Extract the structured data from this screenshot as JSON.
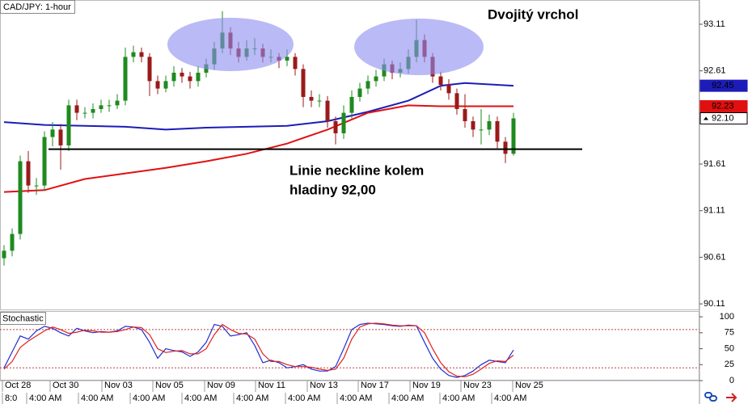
{
  "chart_data": [
    {
      "type": "candlestick",
      "title": "CAD/JPY: 1-hour",
      "open": [
        90.6,
        90.68,
        90.86,
        91.64,
        91.38,
        91.38,
        91.9,
        91.98,
        91.81,
        92.24,
        92.16,
        92.16,
        92.2,
        92.24,
        92.24,
        92.29,
        92.76,
        92.81,
        92.76,
        92.5,
        92.42,
        92.5,
        92.59,
        92.55,
        92.5,
        92.59,
        92.68,
        92.85,
        93.02,
        92.85,
        92.76,
        92.85,
        92.85,
        92.76,
        92.76,
        92.72,
        92.76,
        92.63,
        92.33,
        92.29,
        92.29,
        92.07,
        91.94,
        92.16,
        92.33,
        92.42,
        92.5,
        92.55,
        92.68,
        92.59,
        92.63,
        92.76,
        92.94,
        92.76,
        92.55,
        92.46,
        92.37,
        92.2,
        92.07,
        91.98,
        91.98,
        92.07,
        91.85,
        91.72
      ],
      "high": [
        90.74,
        90.92,
        91.7,
        91.75,
        91.46,
        91.96,
        92.06,
        92.04,
        92.3,
        92.3,
        92.22,
        92.26,
        92.3,
        92.3,
        92.36,
        92.86,
        92.88,
        92.86,
        92.8,
        92.56,
        92.56,
        92.66,
        92.64,
        92.6,
        92.66,
        92.74,
        92.92,
        93.25,
        93.08,
        92.92,
        92.94,
        92.96,
        92.9,
        92.84,
        92.8,
        92.84,
        92.8,
        92.68,
        92.4,
        92.36,
        92.34,
        92.12,
        92.24,
        92.4,
        92.48,
        92.56,
        92.62,
        92.74,
        92.72,
        92.7,
        92.84,
        93.16,
        93.0,
        92.8,
        92.6,
        92.52,
        92.42,
        92.36,
        92.12,
        92.2,
        92.14,
        92.12,
        91.9,
        92.16
      ],
      "low": [
        90.52,
        90.62,
        90.8,
        91.3,
        91.28,
        91.32,
        91.8,
        91.55,
        91.75,
        92.08,
        92.1,
        92.1,
        92.16,
        92.17,
        92.2,
        92.24,
        92.7,
        92.7,
        92.34,
        92.36,
        92.38,
        92.44,
        92.48,
        92.42,
        92.44,
        92.54,
        92.62,
        92.8,
        92.78,
        92.7,
        92.72,
        92.78,
        92.7,
        92.7,
        92.64,
        92.66,
        92.56,
        92.22,
        92.22,
        92.22,
        92.0,
        91.82,
        91.88,
        92.1,
        92.28,
        92.36,
        92.44,
        92.5,
        92.52,
        92.54,
        92.58,
        92.7,
        92.7,
        92.48,
        92.4,
        92.3,
        92.14,
        92.0,
        91.9,
        91.82,
        91.92,
        91.78,
        91.62,
        91.7
      ],
      "close": [
        90.68,
        90.86,
        91.64,
        91.38,
        91.38,
        91.9,
        91.98,
        91.81,
        92.24,
        92.16,
        92.16,
        92.2,
        92.24,
        92.24,
        92.29,
        92.76,
        92.81,
        92.76,
        92.5,
        92.42,
        92.5,
        92.59,
        92.55,
        92.5,
        92.59,
        92.68,
        92.85,
        93.02,
        92.85,
        92.76,
        92.85,
        92.85,
        92.76,
        92.76,
        92.72,
        92.76,
        92.63,
        92.33,
        92.29,
        92.29,
        92.07,
        91.94,
        92.16,
        92.33,
        92.42,
        92.5,
        92.55,
        92.68,
        92.59,
        92.63,
        92.76,
        92.94,
        92.76,
        92.55,
        92.46,
        92.37,
        92.2,
        92.07,
        91.98,
        91.98,
        92.07,
        91.85,
        91.72,
        92.1
      ],
      "up_color": "#1e8a1e",
      "down_color": "#9a1a1a",
      "overlays": [
        {
          "color": "#1c1cb8",
          "x": [
            0,
            5,
            10,
            15,
            20,
            25,
            30,
            35,
            40,
            45,
            50,
            54,
            57,
            63
          ],
          "values": [
            92.06,
            92.03,
            92.02,
            92.01,
            91.98,
            92.0,
            92.01,
            92.02,
            92.07,
            92.17,
            92.29,
            92.45,
            92.48,
            92.45
          ]
        },
        {
          "color": "#e01010",
          "x": [
            0,
            5,
            10,
            15,
            20,
            25,
            30,
            35,
            40,
            45,
            50,
            54,
            57,
            63
          ],
          "values": [
            91.31,
            91.33,
            91.45,
            91.51,
            91.57,
            91.64,
            91.72,
            91.83,
            91.98,
            92.16,
            92.24,
            92.23,
            92.23,
            92.23
          ]
        }
      ],
      "neckline": {
        "value": 91.77,
        "x": [
          5.5,
          71.5
        ]
      },
      "xlim": [
        -0.5,
        86
      ],
      "ylim": [
        90.05,
        93.37
      ],
      "yticks": [
        93.11,
        92.61,
        91.61,
        91.11,
        90.61,
        90.11
      ],
      "markers": [
        {
          "value": 92.45,
          "label": "92.45",
          "color": "#1c1cb8"
        },
        {
          "value": 92.23,
          "label": "92.23",
          "color": "#e01010"
        },
        {
          "value": 92.1,
          "label": "92.10",
          "color": "#ffffff"
        }
      ],
      "xticks": [
        {
          "value": -0.2,
          "label": "Oct 28"
        },
        {
          "value": 5.7,
          "label": "Oct 30"
        },
        {
          "value": 12.1,
          "label": "Nov 03"
        },
        {
          "value": 18.4,
          "label": "Nov 05"
        },
        {
          "value": 24.8,
          "label": "Nov 09"
        },
        {
          "value": 31.1,
          "label": "Nov 11"
        },
        {
          "value": 37.5,
          "label": "Nov 13"
        },
        {
          "value": 43.8,
          "label": "Nov 17"
        },
        {
          "value": 50.2,
          "label": "Nov 19"
        },
        {
          "value": 56.5,
          "label": "Nov 23"
        },
        {
          "value": 62.9,
          "label": "Nov 25"
        }
      ],
      "xticks_time": [
        {
          "value": -0.2,
          "label": "8:0"
        },
        {
          "value": 2.8,
          "label": "4:00 AM"
        },
        {
          "value": 9.2,
          "label": "4:00 AM"
        },
        {
          "value": 15.6,
          "label": "4:00 AM"
        },
        {
          "value": 22,
          "label": "4:00 AM"
        },
        {
          "value": 28.4,
          "label": "4:00 AM"
        },
        {
          "value": 34.8,
          "label": "4:00 AM"
        },
        {
          "value": 41.2,
          "label": "4:00 AM"
        },
        {
          "value": 47.6,
          "label": "4:00 AM"
        },
        {
          "value": 53.9,
          "label": "4:00 AM"
        },
        {
          "value": 60.3,
          "label": "4:00 AM"
        }
      ],
      "annotations": [
        "Dvojitý vrchol",
        "Linie neckline kolem",
        "hladiny 92,00"
      ]
    },
    {
      "type": "line",
      "title": "Stochastic",
      "series": [
        {
          "color": "#2030d0",
          "values": [
            20,
            45,
            70,
            65,
            78,
            85,
            82,
            75,
            70,
            82,
            78,
            75,
            77,
            76,
            78,
            85,
            84,
            80,
            60,
            35,
            50,
            47,
            45,
            38,
            45,
            60,
            88,
            85,
            70,
            72,
            75,
            55,
            28,
            32,
            28,
            20,
            22,
            25,
            18,
            15,
            15,
            22,
            50,
            80,
            88,
            90,
            89,
            88,
            86,
            85,
            87,
            86,
            60,
            35,
            18,
            8,
            5,
            8,
            15,
            25,
            32,
            30,
            28,
            48
          ]
        },
        {
          "color": "#e02020",
          "values": [
            18,
            30,
            52,
            62,
            70,
            78,
            84,
            80,
            74,
            76,
            79,
            78,
            76,
            76,
            77,
            80,
            84,
            83,
            72,
            50,
            44,
            46,
            47,
            42,
            42,
            50,
            72,
            88,
            80,
            74,
            73,
            65,
            42,
            30,
            30,
            25,
            22,
            22,
            21,
            18,
            16,
            18,
            35,
            65,
            84,
            89,
            90,
            89,
            87,
            86,
            86,
            86,
            75,
            50,
            28,
            14,
            7,
            6,
            10,
            18,
            27,
            31,
            30,
            40
          ]
        }
      ],
      "ylim": [
        -5,
        109
      ],
      "yticks": [
        100,
        75,
        50,
        25,
        0
      ],
      "levels": [
        80,
        20
      ]
    }
  ]
}
